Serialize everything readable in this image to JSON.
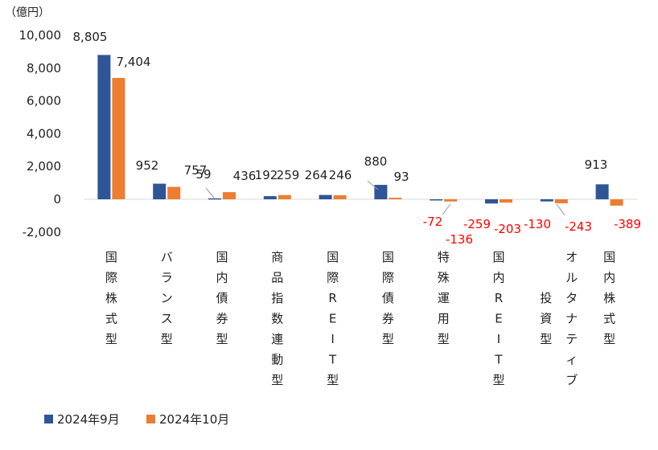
{
  "chart_data": {
    "type": "bar",
    "unit_label": "（億円）",
    "ylim": [
      -2000,
      10000
    ],
    "yticks": [
      "10,000",
      "8,000",
      "6,000",
      "4,000",
      "2,000",
      "0",
      "-2,000"
    ],
    "ytick_values": [
      10000,
      8000,
      6000,
      4000,
      2000,
      0,
      -2000
    ],
    "grid": false,
    "legend_position": "bottom-left",
    "categories": [
      "国際株式型",
      "バランス型",
      "国内債券型",
      "商品指数連動型",
      "国際REIT型",
      "国際債券型",
      "特殊運用型",
      "国内REIT型",
      "投資型",
      "国内株式型"
    ],
    "category_lines": [
      [
        "国",
        "際",
        "株",
        "式",
        "型"
      ],
      [
        "バ",
        "ラ",
        "ン",
        "ス",
        "型"
      ],
      [
        "国",
        "内",
        "債",
        "券",
        "型"
      ],
      [
        "商",
        "品",
        "指",
        "数",
        "連",
        "動",
        "型"
      ],
      [
        "国",
        "際",
        "R",
        "E",
        "I",
        "T",
        "型"
      ],
      [
        "国",
        "際",
        "債",
        "券",
        "型"
      ],
      [
        "特",
        "殊",
        "運",
        "用",
        "型"
      ],
      [
        "国",
        "内",
        "R",
        "E",
        "I",
        "T",
        "型"
      ],
      [
        "投",
        "資",
        "型"
      ],
      [
        "国",
        "内",
        "株",
        "式",
        "型"
      ]
    ],
    "vertical_side_text": [
      "オ",
      "ル",
      "タ",
      "ナ",
      "テ",
      "ィ",
      "ブ"
    ],
    "series": [
      {
        "name": "2024年9月",
        "color": "#2F5597",
        "values": [
          8805,
          952,
          59,
          192,
          264,
          880,
          -72,
          -259,
          -130,
          913
        ],
        "labels": [
          "8,805",
          "952",
          "59",
          "192",
          "264",
          "880",
          "-72",
          "-259",
          "-130",
          "913"
        ]
      },
      {
        "name": "2024年10月",
        "color": "#ED7D31",
        "values": [
          7404,
          757,
          436,
          259,
          246,
          93,
          -136,
          -203,
          -243,
          -389
        ],
        "labels": [
          "7,404",
          "757",
          "436",
          "259",
          "246",
          "93",
          "-136",
          "-203",
          "-243",
          "-389"
        ]
      }
    ],
    "negative_label_color": "#FF0000"
  }
}
